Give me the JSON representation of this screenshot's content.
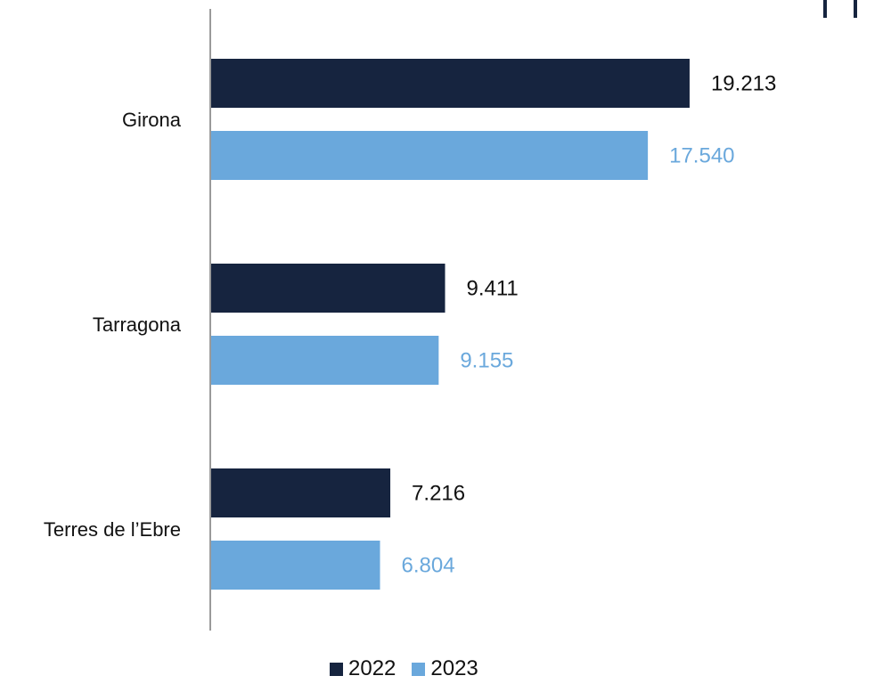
{
  "colors": {
    "series_2022": "#16243f",
    "series_2023": "#6aa8dc",
    "axis": "#9a9a9a",
    "text": "#111111"
  },
  "chart_data": {
    "type": "bar",
    "orientation": "horizontal",
    "categories": [
      "Girona",
      "Tarragona",
      "Terres de l’Ebre"
    ],
    "series": [
      {
        "name": "2022",
        "values": [
          19213,
          9411,
          7216
        ],
        "labels": [
          "19.213",
          "9.411",
          "7.216"
        ]
      },
      {
        "name": "2023",
        "values": [
          17540,
          9155,
          6804
        ],
        "labels": [
          "17.540",
          "9.155",
          "6.804"
        ]
      }
    ],
    "xlim": [
      0,
      22500
    ],
    "grid": false,
    "legend_position": "bottom"
  }
}
